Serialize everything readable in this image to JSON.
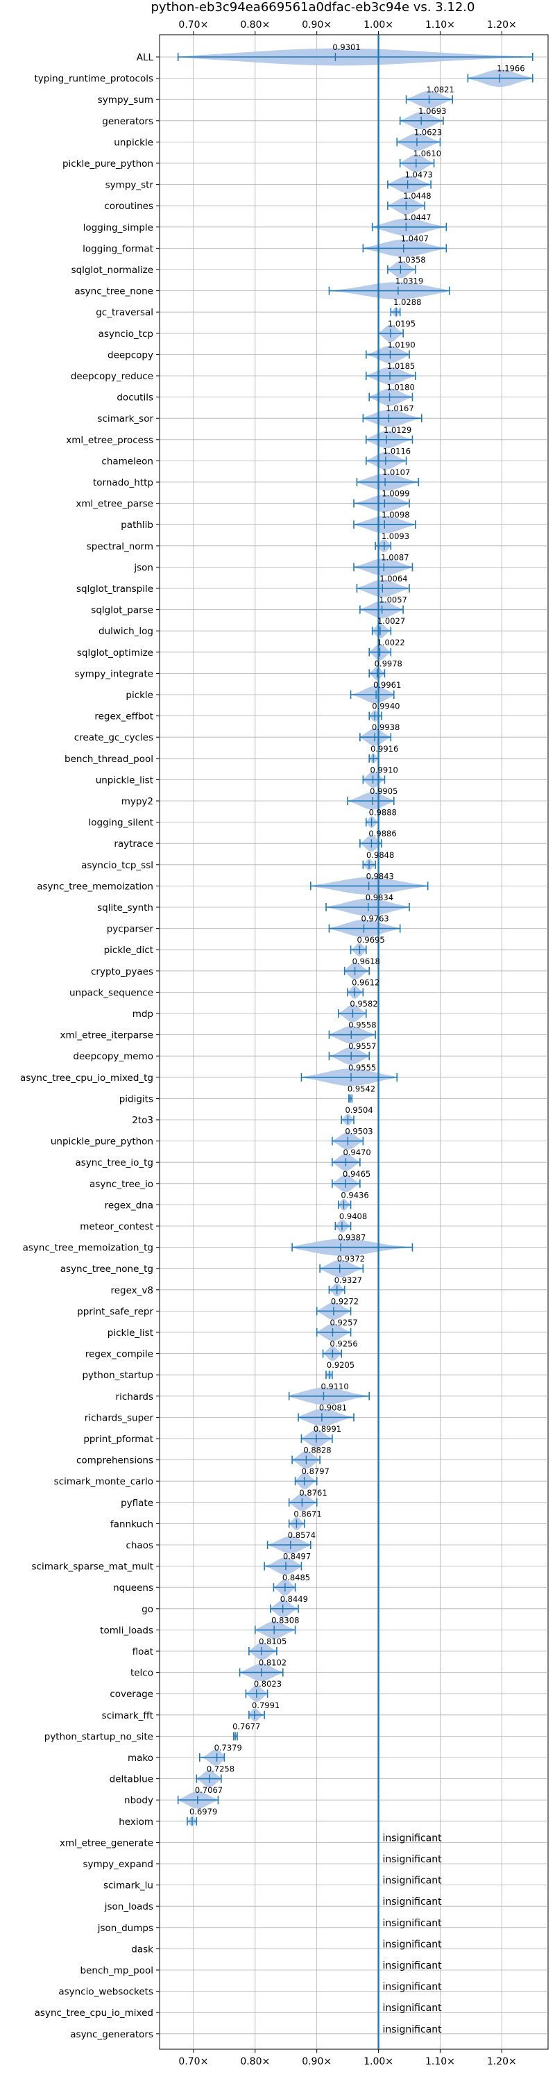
{
  "chart_data": {
    "type": "violin",
    "title": "python-eb3c94ea669561a0dfac-eb3c94e vs. 3.12.0",
    "xlabel": "",
    "ylabel": "",
    "xlim": [
      0.645,
      1.275
    ],
    "xticks": [
      0.7,
      0.8,
      0.9,
      1.0,
      1.1,
      1.2
    ],
    "xtick_labels": [
      "0.70×",
      "0.80×",
      "0.90×",
      "1.00×",
      "1.10×",
      "1.20×"
    ],
    "reference_line": 1.0,
    "grid": true,
    "colors": {
      "violin": "#aec7e8",
      "line": "#1f77b4",
      "grid": "#b0b0b0"
    },
    "benchmarks": [
      {
        "name": "ALL",
        "value": "0.9301",
        "mean": 0.9301,
        "min": 0.675,
        "max": 1.25
      },
      {
        "name": "typing_runtime_protocols",
        "value": "1.1966",
        "mean": 1.1966,
        "min": 1.145,
        "max": 1.25
      },
      {
        "name": "sympy_sum",
        "value": "1.0821",
        "mean": 1.0821,
        "min": 1.045,
        "max": 1.12
      },
      {
        "name": "generators",
        "value": "1.0693",
        "mean": 1.0693,
        "min": 1.035,
        "max": 1.105
      },
      {
        "name": "unpickle",
        "value": "1.0623",
        "mean": 1.0623,
        "min": 1.03,
        "max": 1.1
      },
      {
        "name": "pickle_pure_python",
        "value": "1.0610",
        "mean": 1.061,
        "min": 1.035,
        "max": 1.09
      },
      {
        "name": "sympy_str",
        "value": "1.0473",
        "mean": 1.0473,
        "min": 1.015,
        "max": 1.085
      },
      {
        "name": "coroutines",
        "value": "1.0448",
        "mean": 1.0448,
        "min": 1.015,
        "max": 1.075
      },
      {
        "name": "logging_simple",
        "value": "1.0447",
        "mean": 1.0447,
        "min": 0.99,
        "max": 1.11
      },
      {
        "name": "logging_format",
        "value": "1.0407",
        "mean": 1.0407,
        "min": 0.975,
        "max": 1.11
      },
      {
        "name": "sqlglot_normalize",
        "value": "1.0358",
        "mean": 1.0358,
        "min": 1.015,
        "max": 1.06
      },
      {
        "name": "async_tree_none",
        "value": "1.0319",
        "mean": 1.0319,
        "min": 0.92,
        "max": 1.115
      },
      {
        "name": "gc_traversal",
        "value": "1.0288",
        "mean": 1.0288,
        "min": 1.02,
        "max": 1.035
      },
      {
        "name": "asyncio_tcp",
        "value": "1.0195",
        "mean": 1.0195,
        "min": 1.0,
        "max": 1.04
      },
      {
        "name": "deepcopy",
        "value": "1.0190",
        "mean": 1.019,
        "min": 0.98,
        "max": 1.05
      },
      {
        "name": "deepcopy_reduce",
        "value": "1.0185",
        "mean": 1.0185,
        "min": 0.98,
        "max": 1.06
      },
      {
        "name": "docutils",
        "value": "1.0180",
        "mean": 1.018,
        "min": 0.985,
        "max": 1.055
      },
      {
        "name": "scimark_sor",
        "value": "1.0167",
        "mean": 1.0167,
        "min": 0.975,
        "max": 1.07
      },
      {
        "name": "xml_etree_process",
        "value": "1.0129",
        "mean": 1.0129,
        "min": 0.98,
        "max": 1.055
      },
      {
        "name": "chameleon",
        "value": "1.0116",
        "mean": 1.0116,
        "min": 0.98,
        "max": 1.045
      },
      {
        "name": "tornado_http",
        "value": "1.0107",
        "mean": 1.0107,
        "min": 0.965,
        "max": 1.065
      },
      {
        "name": "xml_etree_parse",
        "value": "1.0099",
        "mean": 1.0099,
        "min": 0.96,
        "max": 1.05
      },
      {
        "name": "pathlib",
        "value": "1.0098",
        "mean": 1.0098,
        "min": 0.96,
        "max": 1.06
      },
      {
        "name": "spectral_norm",
        "value": "1.0093",
        "mean": 1.0093,
        "min": 0.995,
        "max": 1.02
      },
      {
        "name": "json",
        "value": "1.0087",
        "mean": 1.0087,
        "min": 0.96,
        "max": 1.055
      },
      {
        "name": "sqlglot_transpile",
        "value": "1.0064",
        "mean": 1.0064,
        "min": 0.965,
        "max": 1.05
      },
      {
        "name": "sqlglot_parse",
        "value": "1.0057",
        "mean": 1.0057,
        "min": 0.97,
        "max": 1.04
      },
      {
        "name": "dulwich_log",
        "value": "1.0027",
        "mean": 1.0027,
        "min": 0.99,
        "max": 1.02
      },
      {
        "name": "sqlglot_optimize",
        "value": "1.0022",
        "mean": 1.0022,
        "min": 0.985,
        "max": 1.02
      },
      {
        "name": "sympy_integrate",
        "value": "0.9978",
        "mean": 0.9978,
        "min": 0.985,
        "max": 1.01
      },
      {
        "name": "pickle",
        "value": "0.9961",
        "mean": 0.9961,
        "min": 0.955,
        "max": 1.025
      },
      {
        "name": "regex_effbot",
        "value": "0.9940",
        "mean": 0.994,
        "min": 0.985,
        "max": 1.005
      },
      {
        "name": "create_gc_cycles",
        "value": "0.9938",
        "mean": 0.9938,
        "min": 0.97,
        "max": 1.02
      },
      {
        "name": "bench_thread_pool",
        "value": "0.9916",
        "mean": 0.9916,
        "min": 0.985,
        "max": 1.0
      },
      {
        "name": "unpickle_list",
        "value": "0.9910",
        "mean": 0.991,
        "min": 0.975,
        "max": 1.01
      },
      {
        "name": "mypy2",
        "value": "0.9905",
        "mean": 0.9905,
        "min": 0.95,
        "max": 1.025
      },
      {
        "name": "logging_silent",
        "value": "0.9888",
        "mean": 0.9888,
        "min": 0.98,
        "max": 1.0
      },
      {
        "name": "raytrace",
        "value": "0.9886",
        "mean": 0.9886,
        "min": 0.97,
        "max": 1.005
      },
      {
        "name": "asyncio_tcp_ssl",
        "value": "0.9848",
        "mean": 0.9848,
        "min": 0.975,
        "max": 0.995
      },
      {
        "name": "async_tree_memoization",
        "value": "0.9843",
        "mean": 0.9843,
        "min": 0.89,
        "max": 1.08
      },
      {
        "name": "sqlite_synth",
        "value": "0.9834",
        "mean": 0.9834,
        "min": 0.915,
        "max": 1.05
      },
      {
        "name": "pycparser",
        "value": "0.9763",
        "mean": 0.9763,
        "min": 0.92,
        "max": 1.035
      },
      {
        "name": "pickle_dict",
        "value": "0.9695",
        "mean": 0.9695,
        "min": 0.955,
        "max": 0.98
      },
      {
        "name": "crypto_pyaes",
        "value": "0.9618",
        "mean": 0.9618,
        "min": 0.945,
        "max": 0.985
      },
      {
        "name": "unpack_sequence",
        "value": "0.9612",
        "mean": 0.9612,
        "min": 0.95,
        "max": 0.975
      },
      {
        "name": "mdp",
        "value": "0.9582",
        "mean": 0.9582,
        "min": 0.935,
        "max": 0.98
      },
      {
        "name": "xml_etree_iterparse",
        "value": "0.9558",
        "mean": 0.9558,
        "min": 0.92,
        "max": 0.995
      },
      {
        "name": "deepcopy_memo",
        "value": "0.9557",
        "mean": 0.9557,
        "min": 0.92,
        "max": 0.985
      },
      {
        "name": "async_tree_cpu_io_mixed_tg",
        "value": "0.9555",
        "mean": 0.9555,
        "min": 0.875,
        "max": 1.03
      },
      {
        "name": "pidigits",
        "value": "0.9542",
        "mean": 0.9542,
        "min": 0.952,
        "max": 0.957
      },
      {
        "name": "2to3",
        "value": "0.9504",
        "mean": 0.9504,
        "min": 0.94,
        "max": 0.96
      },
      {
        "name": "unpickle_pure_python",
        "value": "0.9503",
        "mean": 0.9503,
        "min": 0.925,
        "max": 0.975
      },
      {
        "name": "async_tree_io_tg",
        "value": "0.9470",
        "mean": 0.947,
        "min": 0.925,
        "max": 0.97
      },
      {
        "name": "async_tree_io",
        "value": "0.9465",
        "mean": 0.9465,
        "min": 0.925,
        "max": 0.97
      },
      {
        "name": "regex_dna",
        "value": "0.9436",
        "mean": 0.9436,
        "min": 0.935,
        "max": 0.955
      },
      {
        "name": "meteor_contest",
        "value": "0.9408",
        "mean": 0.9408,
        "min": 0.93,
        "max": 0.955
      },
      {
        "name": "async_tree_memoization_tg",
        "value": "0.9387",
        "mean": 0.9387,
        "min": 0.86,
        "max": 1.055
      },
      {
        "name": "async_tree_none_tg",
        "value": "0.9372",
        "mean": 0.9372,
        "min": 0.905,
        "max": 0.975
      },
      {
        "name": "regex_v8",
        "value": "0.9327",
        "mean": 0.9327,
        "min": 0.92,
        "max": 0.945
      },
      {
        "name": "pprint_safe_repr",
        "value": "0.9272",
        "mean": 0.9272,
        "min": 0.9,
        "max": 0.955
      },
      {
        "name": "pickle_list",
        "value": "0.9257",
        "mean": 0.9257,
        "min": 0.9,
        "max": 0.955
      },
      {
        "name": "regex_compile",
        "value": "0.9256",
        "mean": 0.9256,
        "min": 0.91,
        "max": 0.94
      },
      {
        "name": "python_startup",
        "value": "0.9205",
        "mean": 0.9205,
        "min": 0.915,
        "max": 0.925
      },
      {
        "name": "richards",
        "value": "0.9110",
        "mean": 0.911,
        "min": 0.855,
        "max": 0.985
      },
      {
        "name": "richards_super",
        "value": "0.9081",
        "mean": 0.9081,
        "min": 0.87,
        "max": 0.96
      },
      {
        "name": "pprint_pformat",
        "value": "0.8991",
        "mean": 0.8991,
        "min": 0.875,
        "max": 0.925
      },
      {
        "name": "comprehensions",
        "value": "0.8828",
        "mean": 0.8828,
        "min": 0.86,
        "max": 0.905
      },
      {
        "name": "scimark_monte_carlo",
        "value": "0.8797",
        "mean": 0.8797,
        "min": 0.865,
        "max": 0.9
      },
      {
        "name": "pyflate",
        "value": "0.8761",
        "mean": 0.8761,
        "min": 0.855,
        "max": 0.9
      },
      {
        "name": "fannkuch",
        "value": "0.8671",
        "mean": 0.8671,
        "min": 0.855,
        "max": 0.88
      },
      {
        "name": "chaos",
        "value": "0.8574",
        "mean": 0.8574,
        "min": 0.82,
        "max": 0.89
      },
      {
        "name": "scimark_sparse_mat_mult",
        "value": "0.8497",
        "mean": 0.8497,
        "min": 0.815,
        "max": 0.875
      },
      {
        "name": "nqueens",
        "value": "0.8485",
        "mean": 0.8485,
        "min": 0.83,
        "max": 0.865
      },
      {
        "name": "go",
        "value": "0.8449",
        "mean": 0.8449,
        "min": 0.825,
        "max": 0.87
      },
      {
        "name": "tomli_loads",
        "value": "0.8308",
        "mean": 0.8308,
        "min": 0.8,
        "max": 0.865
      },
      {
        "name": "float",
        "value": "0.8105",
        "mean": 0.8105,
        "min": 0.79,
        "max": 0.835
      },
      {
        "name": "telco",
        "value": "0.8102",
        "mean": 0.8102,
        "min": 0.775,
        "max": 0.845
      },
      {
        "name": "coverage",
        "value": "0.8023",
        "mean": 0.8023,
        "min": 0.785,
        "max": 0.82
      },
      {
        "name": "scimark_fft",
        "value": "0.7991",
        "mean": 0.7991,
        "min": 0.79,
        "max": 0.815
      },
      {
        "name": "python_startup_no_site",
        "value": "0.7677",
        "mean": 0.7677,
        "min": 0.765,
        "max": 0.771
      },
      {
        "name": "mako",
        "value": "0.7379",
        "mean": 0.7379,
        "min": 0.71,
        "max": 0.75
      },
      {
        "name": "deltablue",
        "value": "0.7258",
        "mean": 0.7258,
        "min": 0.705,
        "max": 0.745
      },
      {
        "name": "nbody",
        "value": "0.7067",
        "mean": 0.7067,
        "min": 0.675,
        "max": 0.74
      },
      {
        "name": "hexiom",
        "value": "0.6979",
        "mean": 0.6979,
        "min": 0.69,
        "max": 0.705
      },
      {
        "name": "xml_etree_generate",
        "insignificant": "insignificant"
      },
      {
        "name": "sympy_expand",
        "insignificant": "insignificant"
      },
      {
        "name": "scimark_lu",
        "insignificant": "insignificant"
      },
      {
        "name": "json_loads",
        "insignificant": "insignificant"
      },
      {
        "name": "json_dumps",
        "insignificant": "insignificant"
      },
      {
        "name": "dask",
        "insignificant": "insignificant"
      },
      {
        "name": "bench_mp_pool",
        "insignificant": "insignificant"
      },
      {
        "name": "asyncio_websockets",
        "insignificant": "insignificant"
      },
      {
        "name": "async_tree_cpu_io_mixed",
        "insignificant": "insignificant"
      },
      {
        "name": "async_generators",
        "insignificant": "insignificant"
      }
    ]
  }
}
